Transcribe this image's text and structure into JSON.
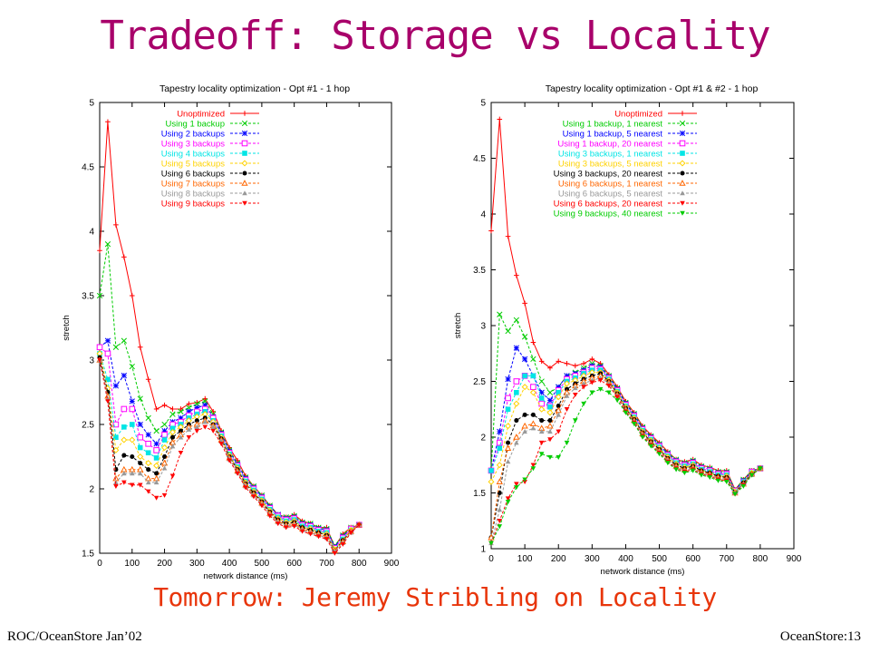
{
  "slide": {
    "title": "Tradeoff: Storage vs Locality",
    "subtitle": "Tomorrow: Jeremy Stribling on Locality",
    "footer_left": "ROC/OceanStore Jan’02",
    "footer_right": "OceanStore:13"
  },
  "chart_data": [
    {
      "type": "line",
      "title": "Tapestry locality optimization - Opt #1 - 1 hop",
      "xlabel": "network distance (ms)",
      "ylabel": "stretch",
      "xlim": [
        0,
        900
      ],
      "ylim": [
        1.5,
        5
      ],
      "xticks": [
        "0",
        "100",
        "200",
        "300",
        "400",
        "500",
        "600",
        "700",
        "800",
        "900"
      ],
      "yticks": [
        "1.5",
        "2",
        "2.5",
        "3",
        "3.5",
        "4",
        "4.5",
        "5"
      ],
      "legend_position": "top-right",
      "x": [
        0,
        25,
        50,
        75,
        100,
        125,
        150,
        175,
        200,
        225,
        250,
        275,
        300,
        325,
        350,
        375,
        400,
        425,
        450,
        475,
        500,
        525,
        550,
        575,
        600,
        625,
        650,
        675,
        700,
        725,
        750,
        775,
        800
      ],
      "series": [
        {
          "name": "Unoptimized",
          "color": "#ff0000",
          "marker": "plus",
          "values": [
            3.85,
            4.85,
            4.05,
            3.8,
            3.5,
            3.1,
            2.85,
            2.62,
            2.65,
            2.62,
            2.62,
            2.66,
            2.67,
            2.7,
            2.6,
            2.45,
            2.32,
            2.22,
            2.1,
            2.02,
            1.95,
            1.87,
            1.8,
            1.78,
            1.8,
            1.75,
            1.73,
            1.7,
            1.7,
            1.55,
            1.65,
            1.7,
            1.72
          ]
        },
        {
          "name": "Using 1 backup",
          "color": "#00cc00",
          "marker": "x",
          "values": [
            3.5,
            3.9,
            3.1,
            3.15,
            2.95,
            2.7,
            2.55,
            2.45,
            2.5,
            2.58,
            2.6,
            2.63,
            2.66,
            2.68,
            2.58,
            2.44,
            2.3,
            2.2,
            2.09,
            2.02,
            1.95,
            1.87,
            1.8,
            1.78,
            1.79,
            1.74,
            1.73,
            1.7,
            1.69,
            1.56,
            1.64,
            1.7,
            1.72
          ]
        },
        {
          "name": "Using 2 backups",
          "color": "#0000ff",
          "marker": "asterisk",
          "values": [
            3.1,
            3.15,
            2.8,
            2.88,
            2.68,
            2.5,
            2.42,
            2.35,
            2.45,
            2.52,
            2.55,
            2.6,
            2.63,
            2.65,
            2.56,
            2.43,
            2.29,
            2.19,
            2.08,
            2.01,
            1.94,
            1.86,
            1.8,
            1.77,
            1.78,
            1.73,
            1.72,
            1.69,
            1.68,
            1.55,
            1.63,
            1.69,
            1.72
          ]
        },
        {
          "name": "Using 3 backups",
          "color": "#ff00ff",
          "marker": "square",
          "values": [
            3.1,
            3.05,
            2.5,
            2.62,
            2.62,
            2.4,
            2.35,
            2.3,
            2.42,
            2.5,
            2.52,
            2.57,
            2.6,
            2.62,
            2.55,
            2.42,
            2.28,
            2.18,
            2.07,
            2.0,
            1.93,
            1.85,
            1.79,
            1.76,
            1.77,
            1.72,
            1.71,
            1.68,
            1.67,
            1.54,
            1.62,
            1.69,
            1.72
          ]
        },
        {
          "name": "Using 4 backups",
          "color": "#00e5e5",
          "marker": "filled-square",
          "values": [
            3.05,
            2.85,
            2.4,
            2.48,
            2.5,
            2.32,
            2.28,
            2.24,
            2.38,
            2.47,
            2.5,
            2.55,
            2.58,
            2.6,
            2.53,
            2.41,
            2.27,
            2.17,
            2.06,
            1.99,
            1.92,
            1.84,
            1.78,
            1.75,
            1.76,
            1.71,
            1.7,
            1.67,
            1.66,
            1.53,
            1.61,
            1.68,
            1.72
          ]
        },
        {
          "name": "Using 5 backups",
          "color": "#ffd200",
          "marker": "diamond",
          "values": [
            3.05,
            2.78,
            2.3,
            2.38,
            2.38,
            2.25,
            2.2,
            2.18,
            2.32,
            2.44,
            2.48,
            2.53,
            2.56,
            2.58,
            2.52,
            2.4,
            2.26,
            2.16,
            2.05,
            1.98,
            1.91,
            1.83,
            1.77,
            1.74,
            1.75,
            1.7,
            1.69,
            1.66,
            1.65,
            1.53,
            1.6,
            1.68,
            1.72
          ]
        },
        {
          "name": "Using 6 backups",
          "color": "#000000",
          "marker": "filled-circle",
          "values": [
            3.02,
            2.75,
            2.15,
            2.26,
            2.25,
            2.2,
            2.15,
            2.12,
            2.25,
            2.4,
            2.45,
            2.5,
            2.53,
            2.55,
            2.5,
            2.39,
            2.25,
            2.15,
            2.04,
            1.97,
            1.9,
            1.82,
            1.76,
            1.73,
            1.74,
            1.7,
            1.68,
            1.66,
            1.64,
            1.52,
            1.6,
            1.67,
            1.72
          ]
        },
        {
          "name": "Using 7 backups",
          "color": "#ff6600",
          "marker": "triangle",
          "values": [
            3.0,
            2.72,
            2.08,
            2.15,
            2.15,
            2.15,
            2.08,
            2.08,
            2.2,
            2.36,
            2.42,
            2.48,
            2.5,
            2.53,
            2.49,
            2.38,
            2.24,
            2.14,
            2.03,
            1.96,
            1.89,
            1.81,
            1.75,
            1.72,
            1.73,
            1.69,
            1.67,
            1.65,
            1.63,
            1.52,
            1.59,
            1.67,
            1.72
          ]
        },
        {
          "name": "Using 8 backups",
          "color": "#999999",
          "marker": "filled-triangle",
          "values": [
            3.0,
            2.7,
            2.05,
            2.12,
            2.12,
            2.12,
            2.05,
            2.05,
            2.16,
            2.33,
            2.4,
            2.46,
            2.48,
            2.52,
            2.48,
            2.37,
            2.23,
            2.13,
            2.02,
            1.95,
            1.88,
            1.8,
            1.74,
            1.71,
            1.72,
            1.68,
            1.66,
            1.64,
            1.62,
            1.51,
            1.58,
            1.66,
            1.72
          ]
        },
        {
          "name": "Using 9 backups",
          "color": "#ff0000",
          "marker": "filled-triangle-down",
          "values": [
            3.0,
            2.68,
            2.02,
            2.05,
            2.03,
            2.03,
            1.98,
            1.93,
            1.95,
            2.1,
            2.28,
            2.4,
            2.45,
            2.48,
            2.45,
            2.35,
            2.22,
            2.12,
            2.01,
            1.94,
            1.87,
            1.79,
            1.73,
            1.7,
            1.71,
            1.67,
            1.65,
            1.63,
            1.61,
            1.5,
            1.57,
            1.66,
            1.72
          ]
        }
      ]
    },
    {
      "type": "line",
      "title": "Tapestry locality optimization - Opt #1 & #2 - 1 hop",
      "xlabel": "network distance (ms)",
      "ylabel": "stretch",
      "xlim": [
        0,
        900
      ],
      "ylim": [
        1,
        5
      ],
      "xticks": [
        "0",
        "100",
        "200",
        "300",
        "400",
        "500",
        "600",
        "700",
        "800",
        "900"
      ],
      "yticks": [
        "1",
        "1.5",
        "2",
        "2.5",
        "3",
        "3.5",
        "4",
        "4.5",
        "5"
      ],
      "legend_position": "top-right",
      "x": [
        0,
        25,
        50,
        75,
        100,
        125,
        150,
        175,
        200,
        225,
        250,
        275,
        300,
        325,
        350,
        375,
        400,
        425,
        450,
        475,
        500,
        525,
        550,
        575,
        600,
        625,
        650,
        675,
        700,
        725,
        750,
        775,
        800
      ],
      "series": [
        {
          "name": "Unoptimized",
          "color": "#ff0000",
          "marker": "plus",
          "values": [
            3.85,
            4.85,
            3.8,
            3.45,
            3.2,
            2.85,
            2.68,
            2.62,
            2.68,
            2.66,
            2.64,
            2.66,
            2.7,
            2.66,
            2.56,
            2.45,
            2.32,
            2.22,
            2.1,
            2.02,
            1.95,
            1.87,
            1.8,
            1.78,
            1.8,
            1.75,
            1.73,
            1.7,
            1.7,
            1.53,
            1.62,
            1.7,
            1.72
          ]
        },
        {
          "name": "Using 1 backup, 1 nearest",
          "color": "#00cc00",
          "marker": "x",
          "values": [
            1.7,
            3.1,
            2.95,
            3.05,
            2.9,
            2.7,
            2.5,
            2.4,
            2.45,
            2.55,
            2.58,
            2.62,
            2.66,
            2.64,
            2.55,
            2.44,
            2.31,
            2.21,
            2.09,
            2.01,
            1.94,
            1.86,
            1.8,
            1.77,
            1.79,
            1.74,
            1.72,
            1.69,
            1.69,
            1.53,
            1.62,
            1.7,
            1.72
          ]
        },
        {
          "name": "Using 1 backup, 5 nearest",
          "color": "#0000ff",
          "marker": "asterisk",
          "values": [
            1.7,
            2.05,
            2.52,
            2.8,
            2.7,
            2.55,
            2.4,
            2.33,
            2.45,
            2.55,
            2.57,
            2.6,
            2.64,
            2.63,
            2.54,
            2.43,
            2.3,
            2.2,
            2.08,
            2.0,
            1.93,
            1.85,
            1.79,
            1.76,
            1.78,
            1.73,
            1.71,
            1.68,
            1.68,
            1.52,
            1.61,
            1.69,
            1.72
          ]
        },
        {
          "name": "Using 1 backup, 20 nearest",
          "color": "#ff00ff",
          "marker": "square",
          "values": [
            1.7,
            1.95,
            2.35,
            2.5,
            2.55,
            2.45,
            2.3,
            2.28,
            2.42,
            2.52,
            2.55,
            2.58,
            2.62,
            2.61,
            2.53,
            2.42,
            2.29,
            2.19,
            2.07,
            1.99,
            1.92,
            1.84,
            1.78,
            1.75,
            1.77,
            1.72,
            1.7,
            1.67,
            1.67,
            1.52,
            1.6,
            1.69,
            1.72
          ]
        },
        {
          "name": "Using 3 backups, 1 nearest",
          "color": "#00e5e5",
          "marker": "filled-square",
          "values": [
            1.7,
            1.9,
            2.25,
            2.4,
            2.55,
            2.55,
            2.35,
            2.27,
            2.4,
            2.5,
            2.53,
            2.57,
            2.6,
            2.6,
            2.52,
            2.41,
            2.28,
            2.18,
            2.06,
            1.98,
            1.91,
            1.83,
            1.77,
            1.74,
            1.76,
            1.71,
            1.69,
            1.66,
            1.66,
            1.51,
            1.6,
            1.68,
            1.72
          ]
        },
        {
          "name": "Using 3 backups, 5 nearest",
          "color": "#ffd200",
          "marker": "diamond",
          "values": [
            1.6,
            1.75,
            2.1,
            2.3,
            2.45,
            2.4,
            2.25,
            2.22,
            2.36,
            2.48,
            2.51,
            2.55,
            2.58,
            2.58,
            2.51,
            2.4,
            2.27,
            2.17,
            2.05,
            1.97,
            1.9,
            1.82,
            1.76,
            1.73,
            1.75,
            1.7,
            1.68,
            1.65,
            1.65,
            1.51,
            1.59,
            1.68,
            1.72
          ]
        },
        {
          "name": "Using 3 backups, 20 nearest",
          "color": "#000000",
          "marker": "filled-circle",
          "values": [
            1.1,
            1.5,
            1.95,
            2.15,
            2.2,
            2.2,
            2.15,
            2.15,
            2.28,
            2.43,
            2.48,
            2.52,
            2.55,
            2.57,
            2.5,
            2.39,
            2.26,
            2.16,
            2.04,
            1.96,
            1.89,
            1.81,
            1.75,
            1.72,
            1.74,
            1.7,
            1.68,
            1.65,
            1.64,
            1.5,
            1.59,
            1.67,
            1.72
          ]
        },
        {
          "name": "Using 6 backups, 1 nearest",
          "color": "#ff6600",
          "marker": "triangle",
          "values": [
            1.1,
            1.6,
            1.9,
            2.0,
            2.1,
            2.12,
            2.08,
            2.1,
            2.24,
            2.4,
            2.46,
            2.5,
            2.53,
            2.55,
            2.49,
            2.38,
            2.25,
            2.15,
            2.03,
            1.95,
            1.88,
            1.8,
            1.74,
            1.71,
            1.73,
            1.69,
            1.67,
            1.64,
            1.63,
            1.5,
            1.58,
            1.67,
            1.72
          ]
        },
        {
          "name": "Using 6 backups, 5 nearest",
          "color": "#999999",
          "marker": "filled-triangle",
          "values": [
            1.05,
            1.35,
            1.78,
            1.95,
            2.05,
            2.08,
            2.05,
            2.05,
            2.2,
            2.37,
            2.44,
            2.48,
            2.51,
            2.53,
            2.48,
            2.37,
            2.24,
            2.14,
            2.02,
            1.94,
            1.87,
            1.79,
            1.73,
            1.7,
            1.72,
            1.68,
            1.66,
            1.63,
            1.62,
            1.5,
            1.58,
            1.66,
            1.72
          ]
        },
        {
          "name": "Using 6 backups, 20 nearest",
          "color": "#ff0000",
          "marker": "filled-triangle-down",
          "values": [
            1.05,
            1.25,
            1.45,
            1.58,
            1.6,
            1.75,
            1.95,
            1.98,
            2.05,
            2.25,
            2.38,
            2.45,
            2.49,
            2.51,
            2.46,
            2.36,
            2.23,
            2.13,
            2.01,
            1.93,
            1.86,
            1.78,
            1.72,
            1.69,
            1.71,
            1.67,
            1.65,
            1.62,
            1.61,
            1.49,
            1.57,
            1.66,
            1.72
          ]
        },
        {
          "name": "Using 9 backups, 40 nearest",
          "color": "#00cc00",
          "marker": "filled-triangle-down",
          "values": [
            1.05,
            1.2,
            1.42,
            1.55,
            1.62,
            1.72,
            1.85,
            1.82,
            1.82,
            1.95,
            2.15,
            2.3,
            2.4,
            2.43,
            2.4,
            2.33,
            2.22,
            2.12,
            2.0,
            1.92,
            1.85,
            1.77,
            1.71,
            1.68,
            1.7,
            1.66,
            1.64,
            1.61,
            1.6,
            1.49,
            1.56,
            1.66,
            1.72
          ]
        }
      ]
    }
  ]
}
